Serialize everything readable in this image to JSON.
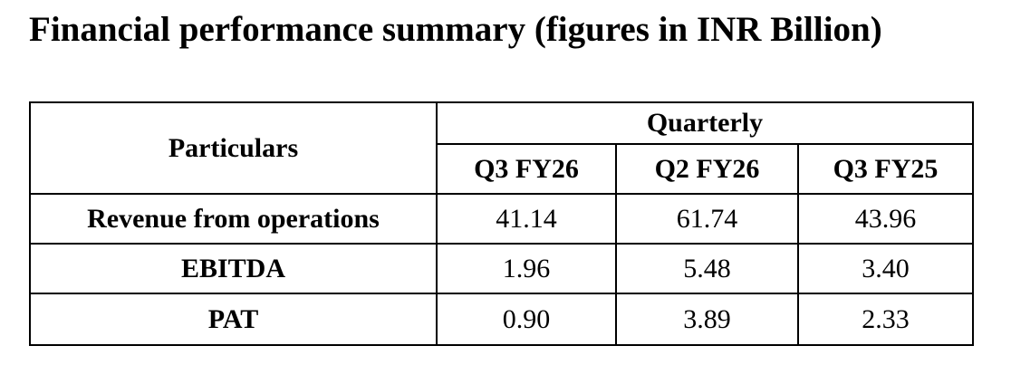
{
  "header": {
    "title": "Financial performance summary (figures in INR Billion)"
  },
  "table": {
    "corner": "Particulars",
    "group": "Quarterly",
    "columns": [
      "Q3 FY26",
      "Q2 FY26",
      "Q3 FY25"
    ],
    "rows": [
      [
        "Revenue from operations",
        "41.14",
        "61.74",
        "43.96"
      ],
      [
        "EBITDA",
        "1.96",
        "5.48",
        "3.40"
      ],
      [
        "PAT",
        "0.90",
        "3.89",
        "2.33"
      ]
    ]
  }
}
